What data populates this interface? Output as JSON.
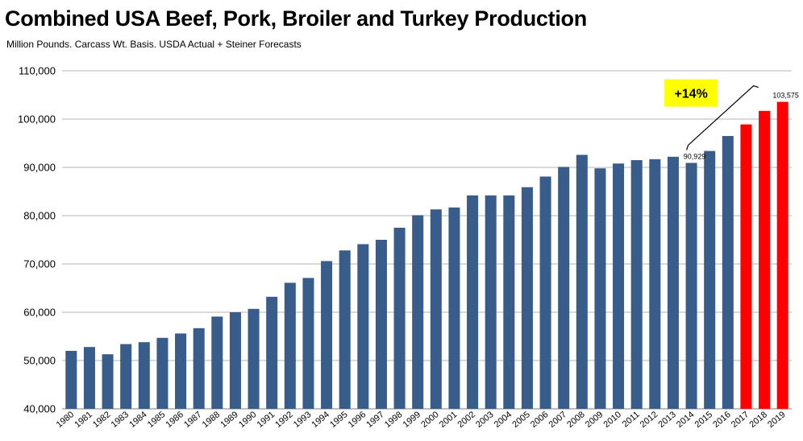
{
  "chart_data": {
    "type": "bar",
    "title": "Combined USA Beef, Pork, Broiler and Turkey Production",
    "subtitle": "Million Pounds.  Carcass Wt. Basis.  USDA Actual + Steiner Forecasts",
    "xlabel": "",
    "ylabel": "",
    "ylim": [
      40000,
      110000
    ],
    "yticks": [
      "40,000",
      "50,000",
      "60,000",
      "70,000",
      "80,000",
      "90,000",
      "100,000",
      "110,000"
    ],
    "grid": true,
    "legend": "none",
    "categories": [
      "1980",
      "1981",
      "1982",
      "1983",
      "1984",
      "1985",
      "1986",
      "1987",
      "1988",
      "1989",
      "1990",
      "1991",
      "1992",
      "1993",
      "1994",
      "1995",
      "1996",
      "1997",
      "1998",
      "1999",
      "2000",
      "2001",
      "2002",
      "2003",
      "2004",
      "2005",
      "2006",
      "2007",
      "2008",
      "2009",
      "2010",
      "2011",
      "2012",
      "2013",
      "2014",
      "2015",
      "2016",
      "2017",
      "2018",
      "2019"
    ],
    "values": [
      52000,
      52800,
      51300,
      53400,
      53800,
      54700,
      55600,
      56700,
      59100,
      60000,
      60700,
      63200,
      66100,
      67100,
      70600,
      72800,
      74100,
      75000,
      77500,
      80100,
      81300,
      81700,
      84200,
      84200,
      84200,
      85900,
      88100,
      90100,
      92600,
      89800,
      90800,
      91500,
      91700,
      92200,
      90929,
      93400,
      96500,
      98900,
      101700,
      103575
    ],
    "forecast_from": "2017",
    "data_labels": [
      {
        "category": "2014",
        "text": "90,929"
      },
      {
        "category": "2019",
        "text": "103,575"
      }
    ],
    "annotation": {
      "text": "+14%",
      "from": "2014",
      "to": "2019"
    },
    "colors": {
      "actual": "#385d8a",
      "forecast": "#ff0000",
      "callout_bg": "#ffff00",
      "grid": "#b4b4b4",
      "axis": "#808080"
    }
  }
}
